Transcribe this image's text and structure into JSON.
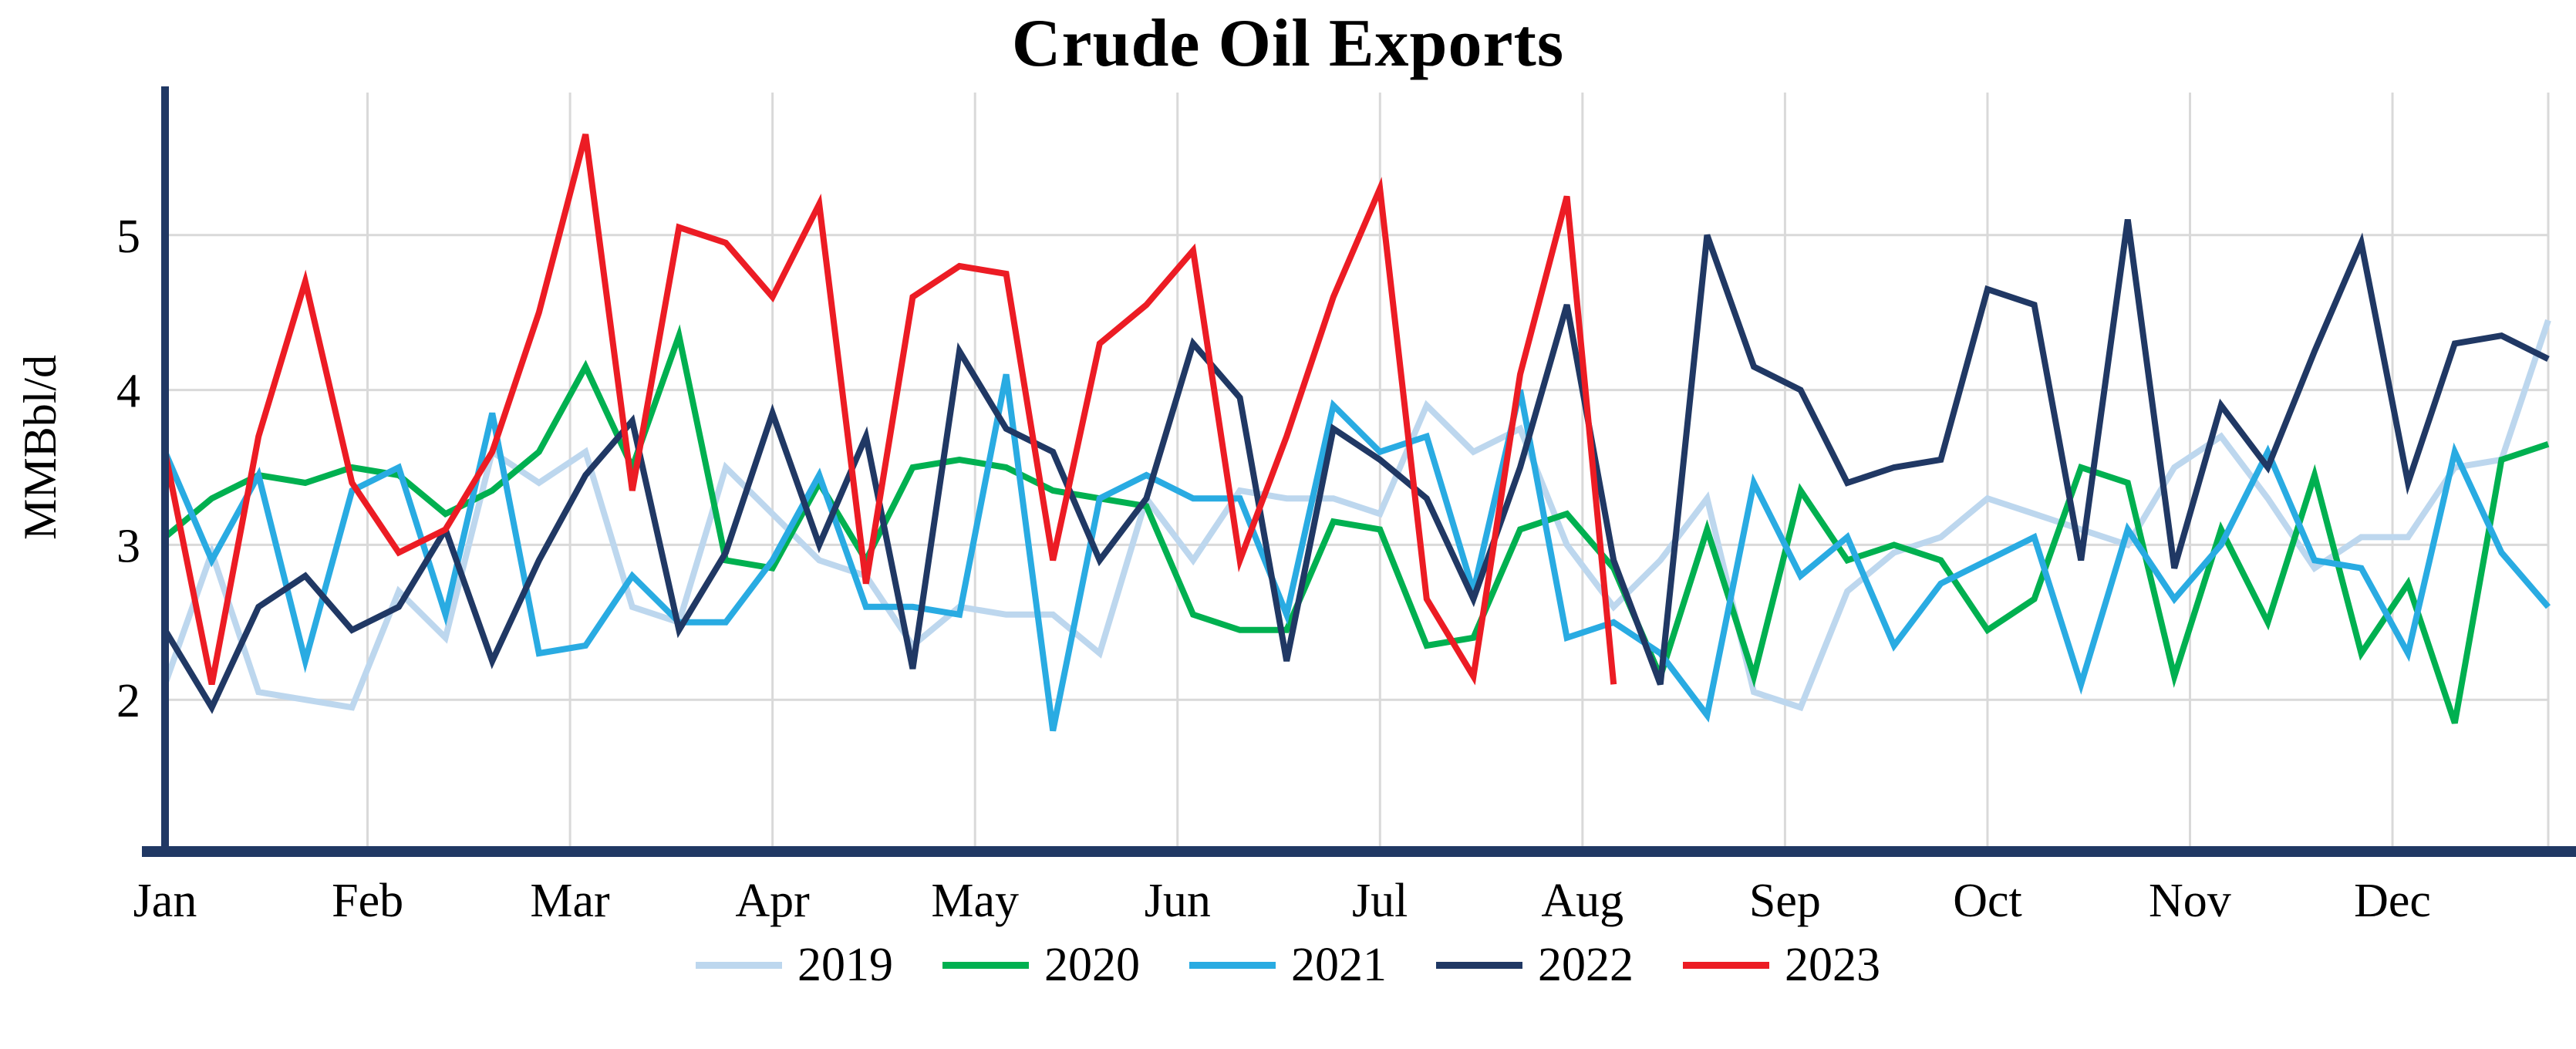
{
  "title": "Crude Oil Exports",
  "chart_data": {
    "type": "line",
    "title": "Crude Oil Exports",
    "xlabel": "",
    "ylabel": "MMBbl/d",
    "months": [
      "Jan",
      "Feb",
      "Mar",
      "Apr",
      "May",
      "Jun",
      "Jul",
      "Aug",
      "Sep",
      "Oct",
      "Nov",
      "Dec"
    ],
    "yticks": [
      2,
      3,
      4,
      5
    ],
    "ylim": [
      1.02,
      5.92
    ],
    "points_per_year": 52,
    "grid": true,
    "legend_position": "bottom",
    "axis_color": "#203864",
    "grid_color": "#D9D9D9",
    "text_color": "#000000",
    "series": [
      {
        "name": "2019",
        "color": "#BDD7EE",
        "values": [
          2.1,
          2.95,
          2.05,
          2.0,
          1.95,
          2.7,
          2.4,
          3.6,
          3.4,
          3.6,
          2.6,
          2.5,
          3.5,
          3.2,
          2.9,
          2.8,
          2.35,
          2.6,
          2.55,
          2.55,
          2.3,
          3.3,
          2.9,
          3.35,
          3.3,
          3.3,
          3.2,
          3.9,
          3.6,
          3.75,
          3.0,
          2.6,
          2.9,
          3.3,
          2.05,
          1.95,
          2.7,
          2.95,
          3.05,
          3.3,
          3.2,
          3.1,
          3.0,
          3.5,
          3.7,
          3.3,
          2.85,
          3.05,
          3.05,
          3.5,
          3.55,
          4.45
        ]
      },
      {
        "name": "2020",
        "color": "#00B050",
        "values": [
          3.05,
          3.3,
          3.45,
          3.4,
          3.5,
          3.45,
          3.2,
          3.35,
          3.6,
          4.15,
          3.5,
          4.35,
          2.9,
          2.85,
          3.4,
          2.9,
          3.5,
          3.55,
          3.5,
          3.35,
          3.3,
          3.25,
          2.55,
          2.45,
          2.45,
          3.15,
          3.1,
          2.35,
          2.4,
          3.1,
          3.2,
          2.85,
          2.15,
          3.1,
          2.15,
          3.35,
          2.9,
          3.0,
          2.9,
          2.45,
          2.65,
          3.5,
          3.4,
          2.15,
          3.1,
          2.5,
          3.45,
          2.3,
          2.75,
          1.85,
          3.55,
          3.65
        ]
      },
      {
        "name": "2021",
        "color": "#29ABE2",
        "values": [
          3.6,
          2.9,
          3.45,
          2.25,
          3.35,
          3.5,
          2.55,
          3.85,
          2.3,
          2.35,
          2.8,
          2.5,
          2.5,
          2.9,
          3.45,
          2.6,
          2.6,
          2.55,
          4.1,
          1.8,
          3.3,
          3.45,
          3.3,
          3.3,
          2.55,
          3.9,
          3.6,
          3.7,
          2.7,
          4.0,
          2.4,
          2.5,
          2.3,
          1.9,
          3.4,
          2.8,
          3.05,
          2.35,
          2.75,
          2.9,
          3.05,
          2.1,
          3.1,
          2.65,
          3.0,
          3.6,
          2.9,
          2.85,
          2.3,
          3.6,
          2.95,
          2.6
        ]
      },
      {
        "name": "2022",
        "color": "#203864",
        "values": [
          2.45,
          1.95,
          2.6,
          2.8,
          2.45,
          2.6,
          3.1,
          2.25,
          2.9,
          3.45,
          3.8,
          2.45,
          2.95,
          3.85,
          3.0,
          3.7,
          2.2,
          4.25,
          3.75,
          3.6,
          2.9,
          3.3,
          4.3,
          3.95,
          2.25,
          3.75,
          3.55,
          3.3,
          2.65,
          3.5,
          4.55,
          2.9,
          2.1,
          5.0,
          4.15,
          4.0,
          3.4,
          3.5,
          3.55,
          4.65,
          4.55,
          2.9,
          5.1,
          2.85,
          3.9,
          3.5,
          4.25,
          4.95,
          3.4,
          4.3,
          4.35,
          4.2
        ]
      },
      {
        "name": "2023",
        "color": "#EC1C24",
        "values": [
          3.6,
          2.1,
          3.7,
          4.7,
          3.4,
          2.95,
          3.1,
          3.6,
          4.5,
          5.65,
          3.35,
          5.05,
          4.95,
          4.6,
          5.2,
          2.75,
          4.6,
          4.8,
          4.75,
          2.9,
          4.3,
          4.55,
          4.9,
          2.9,
          3.7,
          4.6,
          5.3,
          2.65,
          2.15,
          4.1,
          5.25,
          2.1
        ]
      }
    ]
  }
}
